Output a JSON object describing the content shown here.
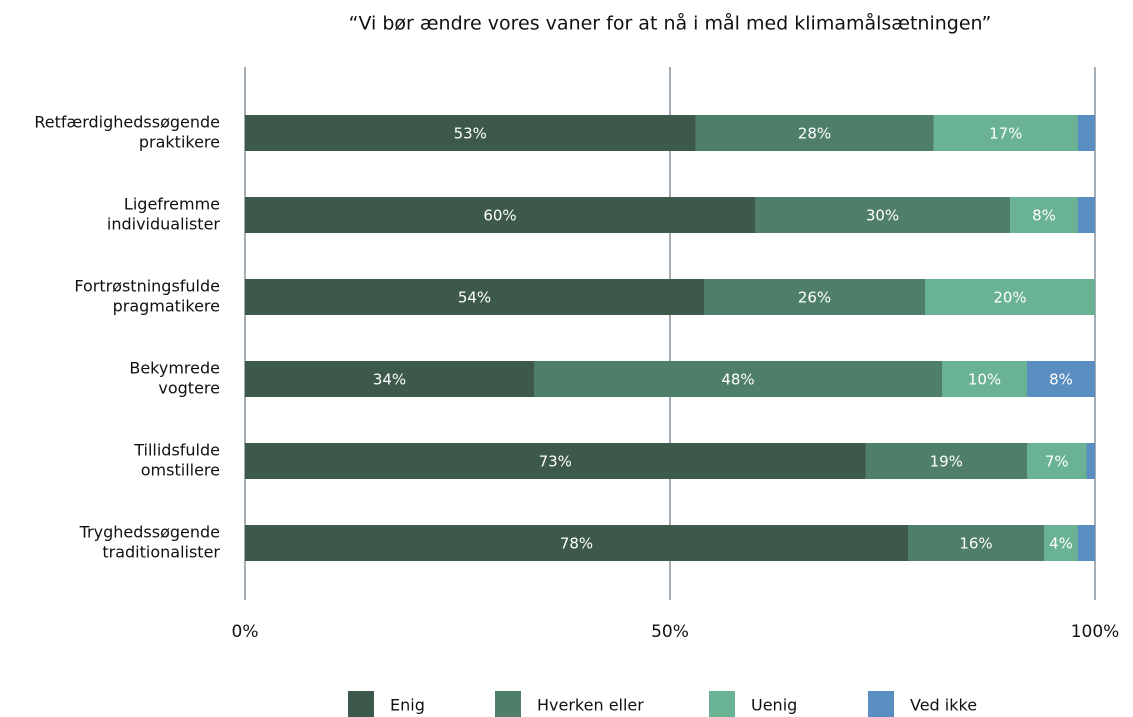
{
  "chart_data": {
    "type": "stacked_bar_horizontal",
    "title": "“Vi bør ændre vores vaner for at nå i mål med klimamålsætningen”",
    "categories": [
      [
        "Retfærdighedssøgende",
        "praktikere"
      ],
      [
        "Ligefremme",
        "individualister"
      ],
      [
        "Fortrøstningsfulde",
        "pragmatikere"
      ],
      [
        "Bekymrede",
        "vogtere"
      ],
      [
        "Tillidsfulde",
        "omstillere"
      ],
      [
        "Tryghedssøgende",
        "traditionalister"
      ]
    ],
    "series": [
      {
        "name": "Enig",
        "color": "#3c594b",
        "values": [
          53,
          60,
          54,
          34,
          73,
          78
        ],
        "value_labels": [
          "53%",
          "60%",
          "54%",
          "34%",
          "73%",
          "78%"
        ]
      },
      {
        "name": "Hverken eller",
        "color": "#4f7f6a",
        "values": [
          28,
          30,
          26,
          48,
          19,
          16
        ],
        "value_labels": [
          "28%",
          "30%",
          "26%",
          "48%",
          "19%",
          "16%"
        ]
      },
      {
        "name": "Uenig",
        "color": "#69b294",
        "values": [
          17,
          8,
          20,
          10,
          7,
          4
        ],
        "value_labels": [
          "17%",
          "8%",
          "20%",
          "10%",
          "7%",
          "4%"
        ]
      },
      {
        "name": "Ved ikke",
        "color": "#5b8ec0",
        "values": [
          2,
          2,
          0,
          8,
          1,
          2
        ],
        "value_labels": [
          null,
          null,
          null,
          "8%",
          null,
          null
        ]
      }
    ],
    "xlim": [
      0,
      100
    ],
    "xticks": [
      {
        "value": 0,
        "label": "0%"
      },
      {
        "value": 50,
        "label": "50%"
      },
      {
        "value": 100,
        "label": "100%"
      }
    ],
    "grid": true
  }
}
